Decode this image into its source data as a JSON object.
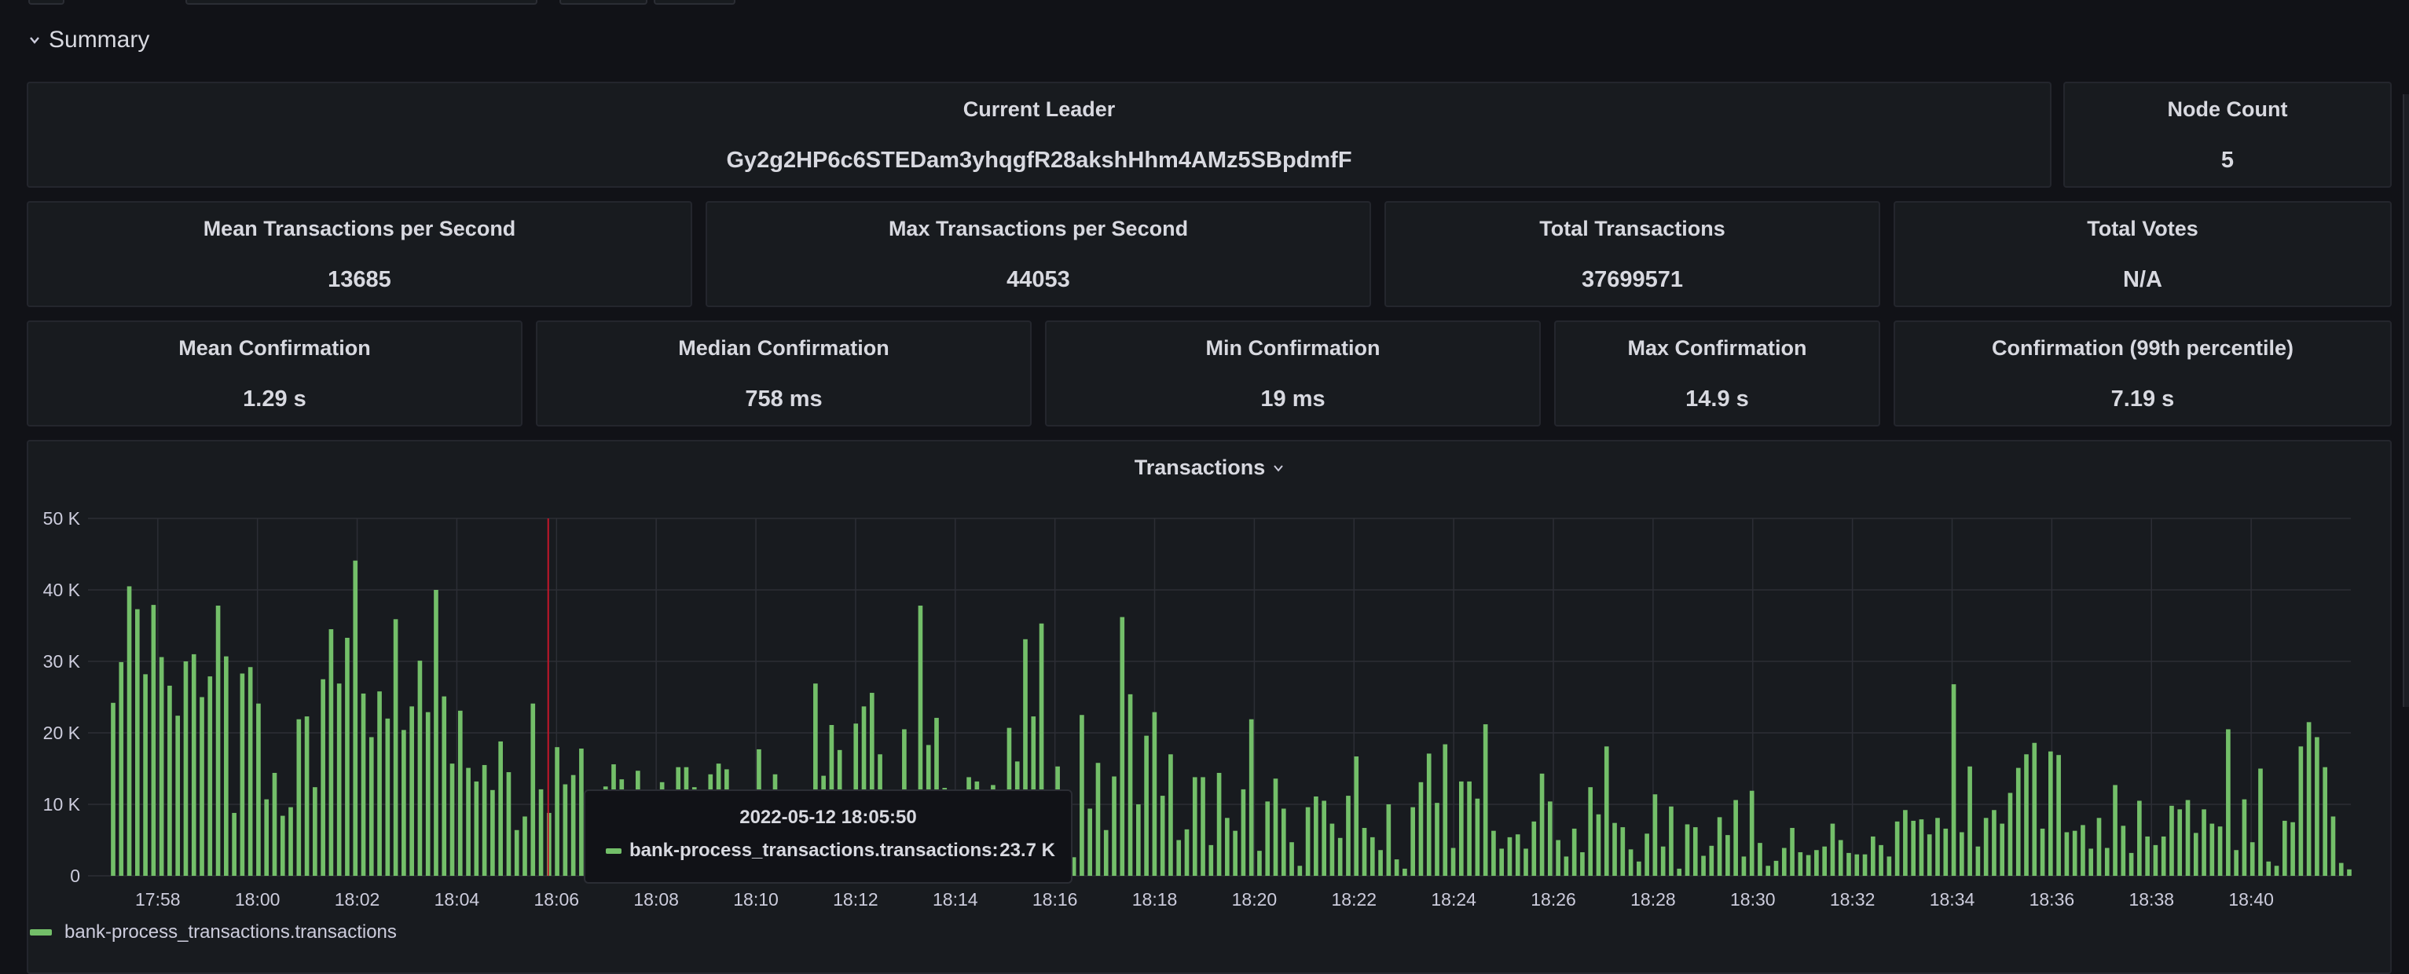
{
  "row": {
    "title": "Summary"
  },
  "panels": {
    "current_leader": {
      "title": "Current Leader",
      "value": "Gy2g2HP6c6STEDam3yhqgfR28akshHhm4AMz5SBpdmfF"
    },
    "node_count": {
      "title": "Node Count",
      "value": "5"
    },
    "mean_tps": {
      "title": "Mean Transactions per Second",
      "value": "13685"
    },
    "max_tps": {
      "title": "Max Transactions per Second",
      "value": "44053"
    },
    "total_transactions": {
      "title": "Total Transactions",
      "value": "37699571"
    },
    "total_votes": {
      "title": "Total Votes",
      "value": "N/A"
    },
    "mean_confirmation": {
      "title": "Mean Confirmation",
      "value": "1.29 s"
    },
    "median_confirmation": {
      "title": "Median Confirmation",
      "value": "758 ms"
    },
    "min_confirmation": {
      "title": "Min Confirmation",
      "value": "19 ms"
    },
    "max_confirmation": {
      "title": "Max Confirmation",
      "value": "14.9 s"
    },
    "p99_confirmation": {
      "title": "Confirmation (99th percentile)",
      "value": "7.19 s"
    }
  },
  "transactions_panel": {
    "title": "Transactions",
    "legend": "bank-process_transactions.transactions",
    "tooltip": {
      "time": "2022-05-12 18:05:50",
      "series": "bank-process_transactions.transactions:",
      "value": "23.7 K"
    }
  },
  "colors": {
    "series": "#73bf69",
    "cursor": "#c4162a",
    "background": "#111217",
    "panel": "#181b1f"
  },
  "chart_data": {
    "type": "bar",
    "y_ticks": [
      "0",
      "10 K",
      "20 K",
      "30 K",
      "40 K",
      "50 K"
    ],
    "ylim": [
      0,
      50000
    ],
    "x_ticks": [
      "17:58",
      "18:00",
      "18:02",
      "18:04",
      "18:06",
      "18:08",
      "18:10",
      "18:12",
      "18:14",
      "18:16",
      "18:18",
      "18:20",
      "18:22",
      "18:24",
      "18:26",
      "18:28",
      "18:30",
      "18:32",
      "18:34",
      "18:36",
      "18:38",
      "18:40"
    ],
    "x_range_minutes": [
      -1.4,
      44.0
    ],
    "series": [
      {
        "name": "bank-process_transactions.transactions",
        "values": [
          24200,
          29900,
          40500,
          37300,
          28200,
          37900,
          30600,
          26600,
          22400,
          30000,
          31000,
          25000,
          27900,
          37800,
          30700,
          8800,
          28300,
          29200,
          24100,
          10700,
          14400,
          8400,
          9600,
          21900,
          22300,
          12400,
          27500,
          34500,
          26900,
          33300,
          44100,
          25500,
          19400,
          25800,
          22000,
          35900,
          20400,
          23700,
          30100,
          22900,
          40000,
          25100,
          15700,
          23100,
          15100,
          13200,
          15500,
          12000,
          18800,
          14500,
          6400,
          8300,
          24100,
          12100,
          8800,
          18000,
          12800,
          14100,
          17800,
          6400,
          6300,
          12500,
          15600,
          13500,
          10300,
          14700,
          11100,
          2300,
          13100,
          10500,
          15200,
          15200,
          12400,
          9100,
          14200,
          15700,
          14900,
          11700,
          11700,
          3800,
          17700,
          11100,
          14200,
          8000,
          9600,
          6000,
          5300,
          26900,
          14000,
          21100,
          17600,
          10200,
          21300,
          23700,
          25600,
          17000,
          11700,
          6300,
          20500,
          11700,
          37800,
          18300,
          22100,
          12300,
          8900,
          10900,
          13800,
          13200,
          9600,
          12700,
          8200,
          20700,
          16000,
          33100,
          22300,
          35300,
          7900,
          15300,
          8100,
          2600,
          22500,
          9400,
          15800,
          6400,
          13900,
          36200,
          25400,
          10000,
          19600,
          22900,
          11200,
          17000,
          5000,
          6500,
          13800,
          13800,
          4300,
          14400,
          8100,
          6300,
          12100,
          21900,
          3500,
          10400,
          13600,
          9400,
          4700,
          1400,
          9600,
          11100,
          10500,
          7300,
          5300,
          11200,
          16700,
          6700,
          5400,
          3600,
          10000,
          2300,
          1000,
          9600,
          13100,
          17100,
          10200,
          18400,
          3900,
          13200,
          13200,
          10800,
          21200,
          6300,
          3800,
          5400,
          5800,
          3800,
          7600,
          14300,
          10400,
          5000,
          2700,
          6600,
          3300,
          12400,
          8600,
          18100,
          7400,
          6800,
          3700,
          2000,
          5900,
          11400,
          4100,
          9700,
          1000,
          7200,
          6800,
          2800,
          4200,
          8200,
          5700,
          10600,
          2700,
          11900,
          4600,
          1400,
          2100,
          3900,
          6700,
          3300,
          2900,
          3600,
          4100,
          7300,
          5000,
          3200,
          3000,
          3000,
          5500,
          4300,
          2700,
          7600,
          9200,
          7700,
          7900,
          5800,
          8100,
          6600,
          26800,
          6100,
          15300,
          4100,
          8100,
          9200,
          7300,
          11600,
          15100,
          17000,
          18600,
          6600,
          17400,
          16900,
          6100,
          6300,
          7100,
          3800,
          8100,
          3900,
          12700,
          7000,
          3200,
          10500,
          5500,
          4300,
          5500,
          9800,
          9300,
          10600,
          6000,
          9300,
          7300,
          6900,
          20500,
          3600,
          10700,
          4700,
          15000,
          2000,
          1400,
          7700,
          7500,
          18100,
          21500,
          19400,
          15200,
          8300,
          1800,
          900
        ]
      }
    ]
  }
}
